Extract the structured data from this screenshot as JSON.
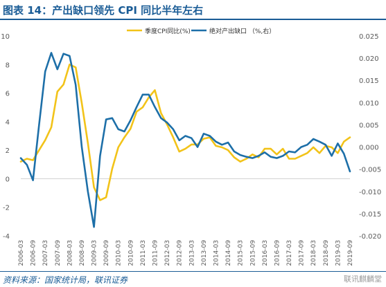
{
  "header": {
    "title": "图表 14：产出缺口领先 CPI 同比半年左右"
  },
  "footer": {
    "source": "资料来源：国家统计局，联讯证券",
    "watermark": "联讯麒麟堂"
  },
  "colors": {
    "cpi": "#f2c319",
    "gap": "#1d6fa8",
    "title": "#1a5c96",
    "axis": "#595959"
  },
  "chart_data": {
    "type": "line",
    "title": "",
    "legend": {
      "position": "top",
      "entries": [
        "季度CPI同比(%)",
        "绝对产出缺口 （%,右）"
      ]
    },
    "categories": [
      "2006-03",
      "2006-06",
      "2006-09",
      "2006-12",
      "2007-03",
      "2007-06",
      "2007-09",
      "2007-12",
      "2008-03",
      "2008-06",
      "2008-09",
      "2008-12",
      "2009-03",
      "2009-06",
      "2009-09",
      "2009-12",
      "2010-03",
      "2010-06",
      "2010-09",
      "2010-12",
      "2011-03",
      "2011-06",
      "2011-09",
      "2011-12",
      "2012-03",
      "2012-06",
      "2012-09",
      "2012-12",
      "2013-03",
      "2013-06",
      "2013-09",
      "2013-12",
      "2014-03",
      "2014-06",
      "2014-09",
      "2014-12",
      "2015-03",
      "2015-06",
      "2015-09",
      "2015-12",
      "2016-03",
      "2016-06",
      "2016-09",
      "2016-12",
      "2017-03",
      "2017-06",
      "2017-09",
      "2017-12",
      "2018-03",
      "2018-06",
      "2018-09",
      "2018-12",
      "2019-03",
      "2019-06",
      "2019-09"
    ],
    "tick_labels": [
      "2006-03",
      "2006-09",
      "2007-03",
      "2007-09",
      "2008-03",
      "2008-09",
      "2009-03",
      "2009-09",
      "2010-03",
      "2010-09",
      "2011-03",
      "2011-09",
      "2012-03",
      "2012-09",
      "2013-03",
      "2013-09",
      "2014-03",
      "2014-09",
      "2015-03",
      "2015-09",
      "2016-03",
      "2016-09",
      "2017-03",
      "2017-09",
      "2018-03",
      "2018-09",
      "2019-03",
      "2019-09"
    ],
    "y_left": {
      "min": -4,
      "max": 10,
      "ticks": [
        "-4",
        "-2",
        "0",
        "2",
        "4",
        "6",
        "8",
        "10"
      ]
    },
    "y_right": {
      "min": -0.02,
      "max": 0.025,
      "ticks": [
        "-0.020",
        "-0.015",
        "-0.010",
        "-0.005",
        "0.000",
        "0.005",
        "0.010",
        "0.015",
        "0.020",
        "0.025"
      ]
    },
    "series": [
      {
        "name": "季度CPI同比(%)",
        "axis": "left",
        "values": [
          1.2,
          1.4,
          1.3,
          2.0,
          2.7,
          3.6,
          6.1,
          6.6,
          8.0,
          7.8,
          5.3,
          2.5,
          -0.6,
          -1.5,
          -1.3,
          0.7,
          2.2,
          2.9,
          3.5,
          4.7,
          5.0,
          5.7,
          6.2,
          4.6,
          3.8,
          2.9,
          1.9,
          2.1,
          2.4,
          2.4,
          2.8,
          2.9,
          2.3,
          2.2,
          2.0,
          1.5,
          1.2,
          1.4,
          1.7,
          1.5,
          2.1,
          2.1,
          1.7,
          2.1,
          1.4,
          1.4,
          1.6,
          1.8,
          2.2,
          1.8,
          2.3,
          2.2,
          1.8,
          2.6,
          2.9
        ]
      },
      {
        "name": "绝对产出缺口 （%,右）",
        "axis": "right",
        "values": [
          -0.0025,
          -0.004,
          -0.0075,
          0.005,
          0.017,
          0.0212,
          0.0175,
          0.021,
          0.0205,
          0.014,
          0.0,
          -0.01,
          -0.018,
          -0.002,
          0.0062,
          0.0065,
          0.004,
          0.0035,
          0.006,
          0.009,
          0.0118,
          0.0118,
          0.009,
          0.0065,
          0.0055,
          0.004,
          0.0015,
          0.0025,
          0.002,
          0.0,
          0.003,
          0.0025,
          0.0012,
          0.0005,
          0.001,
          -0.001,
          -0.0018,
          -0.0022,
          -0.0025,
          -0.002,
          -0.0012,
          -0.0022,
          -0.0025,
          -0.002,
          -0.001,
          -0.0012,
          0.0,
          0.0005,
          0.0018,
          0.0012,
          0.0005,
          -0.002,
          0.0008,
          -0.0015,
          -0.0055
        ]
      }
    ]
  }
}
